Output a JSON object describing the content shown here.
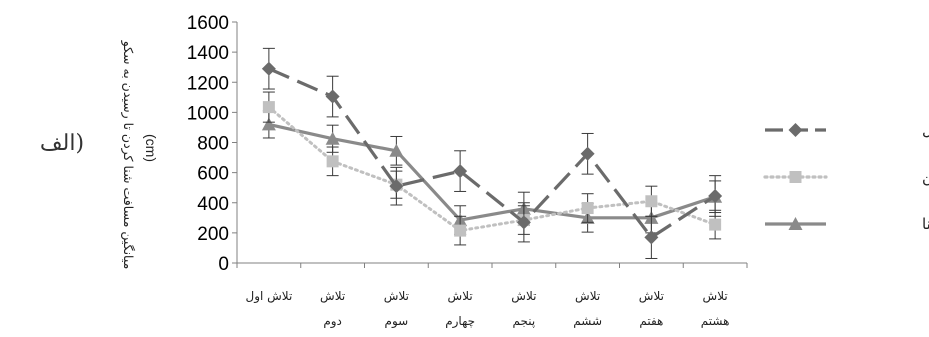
{
  "chart_data": {
    "type": "line",
    "title": "",
    "panel_label": "(الف",
    "ylabel": "میانگین مسافت شنا کردن تا رسیدن به سکو",
    "yunit": "(cm)",
    "xlabel": "",
    "ylim": [
      0,
      1600
    ],
    "yticks": [
      0,
      200,
      400,
      600,
      800,
      1000,
      1200,
      1400,
      1600
    ],
    "grid": false,
    "legend_position": "right",
    "categories": [
      [
        "تلاش اول"
      ],
      [
        "تلاش",
        "دوم"
      ],
      [
        "تلاش",
        "سوم"
      ],
      [
        "تلاش",
        "چهارم"
      ],
      [
        "تلاش",
        "پنجم"
      ],
      [
        "تلاش",
        "ششم"
      ],
      [
        "تلاش",
        "هفتم"
      ],
      [
        "تلاش",
        "هشتم"
      ]
    ],
    "series": [
      {
        "name": "گروه کنترل",
        "color": "#6b6b6b",
        "marker": "diamond",
        "line": "dashed",
        "values": [
          1290,
          1105,
          510,
          610,
          270,
          725,
          170,
          445
        ],
        "errors": [
          135,
          135,
          125,
          135,
          130,
          135,
          140,
          135
        ]
      },
      {
        "name": "گروه کورکومین",
        "color": "#c0c0c0",
        "marker": "square",
        "line": "dotted",
        "values": [
          1035,
          675,
          520,
          215,
          285,
          365,
          410,
          255
        ],
        "errors": [
          100,
          95,
          90,
          95,
          95,
          95,
          100,
          95
        ]
      },
      {
        "name": "گروه شنا",
        "color": "#8a8a8a",
        "marker": "triangle",
        "line": "solid",
        "values": [
          920,
          825,
          745,
          285,
          360,
          300,
          300,
          440
        ],
        "errors": [
          90,
          90,
          95,
          95,
          110,
          95,
          100,
          105
        ]
      }
    ]
  }
}
